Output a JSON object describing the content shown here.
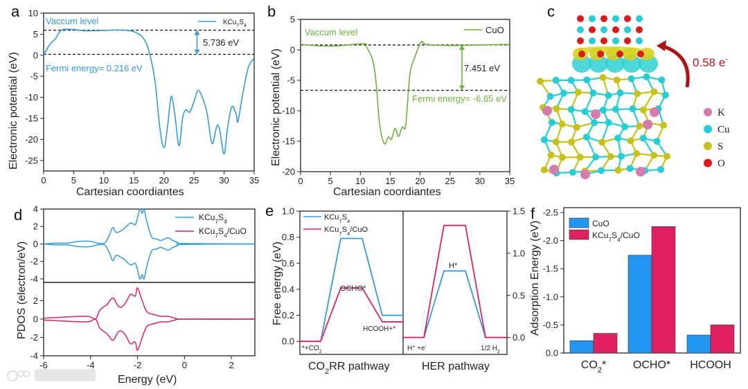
{
  "panel_labels": {
    "a": "a",
    "b": "b",
    "c": "c",
    "d": "d",
    "e": "e",
    "f": "f"
  },
  "colors": {
    "kcu7s4_blue": "#2e9be8",
    "cuo_green": "#6bb33a",
    "composite_pink": "#e0205f",
    "bar_blue": "#2196f0",
    "charge_red": "#c0141e"
  },
  "watermark": "大数跨境",
  "chart_data": [
    {
      "id": "a",
      "type": "line",
      "xlabel": "Cartesian coordiantes",
      "ylabel": "Electronic potential (eV)",
      "xlim": [
        0,
        35
      ],
      "ylim": [
        -27.5,
        10
      ],
      "xticks": [
        "0",
        "5",
        "10",
        "15",
        "20",
        "25",
        "30",
        "35"
      ],
      "yticks": [
        "10",
        "5",
        "0",
        "-5",
        "-10",
        "-15",
        "-20",
        "-25"
      ],
      "legend": "KCu7S4",
      "legend_position": "top-right",
      "annotations": {
        "vacuum": "Vaccum level",
        "fermi": "Fermi energy= 0.216 eV",
        "gap": "5.736 eV"
      },
      "vacuum_level": 5.95,
      "fermi_level": 0.216,
      "series": [
        {
          "name": "KCu7S4",
          "points": [
            [
              0,
              0
            ],
            [
              1,
              2.5
            ],
            [
              2,
              4
            ],
            [
              3,
              6
            ],
            [
              5,
              6.1
            ],
            [
              7,
              5.8
            ],
            [
              10,
              5.9
            ],
            [
              13,
              6
            ],
            [
              15,
              5.6
            ],
            [
              16.5,
              4.2
            ],
            [
              17.5,
              1
            ],
            [
              18.5,
              -6
            ],
            [
              19.3,
              -17
            ],
            [
              20,
              -22
            ],
            [
              20.6,
              -17
            ],
            [
              21.2,
              -9.8
            ],
            [
              21.8,
              -14
            ],
            [
              22.5,
              -21.5
            ],
            [
              23.1,
              -15
            ],
            [
              23.6,
              -13
            ],
            [
              24.3,
              -13.5
            ],
            [
              25,
              -11
            ],
            [
              25.7,
              -8.3
            ],
            [
              26.5,
              -10.5
            ],
            [
              27.2,
              -14
            ],
            [
              28,
              -21
            ],
            [
              28.8,
              -16.8
            ],
            [
              29.3,
              -18
            ],
            [
              30,
              -23.5
            ],
            [
              30.6,
              -17
            ],
            [
              31.3,
              -12.2
            ],
            [
              32,
              -14
            ],
            [
              32.3,
              -15.8
            ],
            [
              33,
              -10
            ],
            [
              34,
              -3
            ],
            [
              35,
              -0.7
            ]
          ]
        }
      ]
    },
    {
      "id": "b",
      "type": "line",
      "xlabel": "Cartesian coordiantes",
      "ylabel": "Electronic potential (eV)",
      "xlim": [
        0,
        35
      ],
      "ylim": [
        -20,
        5
      ],
      "xticks": [
        "0",
        "5",
        "10",
        "15",
        "20",
        "25",
        "30",
        "35"
      ],
      "yticks": [
        "5",
        "0",
        "-5",
        "-10",
        "-15",
        "-20"
      ],
      "legend": "CuO",
      "legend_position": "top-right",
      "annotations": {
        "vacuum": "Vaccum level",
        "fermi": "Fermi energy= -6.65 eV",
        "gap": "7.451 eV"
      },
      "vacuum_level": 0.8,
      "fermi_level": -6.65,
      "series": [
        {
          "name": "CuO",
          "points": [
            [
              0,
              0.9
            ],
            [
              5,
              0.6
            ],
            [
              10.5,
              1
            ],
            [
              11,
              0.5
            ],
            [
              12,
              -1.5
            ],
            [
              12.6,
              -5
            ],
            [
              13.2,
              -12
            ],
            [
              14,
              -15.4
            ],
            [
              14.7,
              -14.3
            ],
            [
              15.2,
              -14.7
            ],
            [
              15.8,
              -12.9
            ],
            [
              16.4,
              -14.2
            ],
            [
              17,
              -12.7
            ],
            [
              17.5,
              -12.9
            ],
            [
              17.8,
              -10
            ],
            [
              18.3,
              -4
            ],
            [
              19,
              -1.5
            ],
            [
              20.2,
              1.3
            ],
            [
              21,
              0.9
            ],
            [
              25,
              0.7
            ],
            [
              30,
              0.8
            ],
            [
              35,
              0.9
            ]
          ]
        }
      ]
    },
    {
      "id": "d",
      "type": "line",
      "xlabel": "Energy (eV)",
      "ylabel": "PDOS (electron/eV)",
      "xlim": [
        -6,
        3
      ],
      "xticks": [
        "-6",
        "-4",
        "-2",
        "0",
        "2"
      ],
      "top_yticks": [
        "4",
        "2",
        "0",
        "-2",
        "-4"
      ],
      "top_ylim": [
        -4.4,
        4
      ],
      "bottom_yticks": [
        "2",
        "0",
        "-2",
        "-4"
      ],
      "bottom_ylim": [
        -4,
        4
      ],
      "legend": [
        "KCu7S4",
        "KCu7S4/CuO"
      ],
      "legend_position": "top-right",
      "series": [
        {
          "name": "KCu7S4",
          "mirrored": true,
          "points": [
            [
              -6,
              0
            ],
            [
              -5.5,
              0.1
            ],
            [
              -5,
              0.1
            ],
            [
              -4.5,
              0.3
            ],
            [
              -4,
              0.3
            ],
            [
              -3.7,
              0.1
            ],
            [
              -3.4,
              0.1
            ],
            [
              -3.2,
              1
            ],
            [
              -3.05,
              1.9
            ],
            [
              -2.9,
              1.3
            ],
            [
              -2.6,
              1.7
            ],
            [
              -2.3,
              2.4
            ],
            [
              -2.1,
              2.2
            ],
            [
              -2,
              3
            ],
            [
              -1.9,
              4
            ],
            [
              -1.8,
              3.5
            ],
            [
              -1.72,
              4
            ],
            [
              -1.6,
              2.5
            ],
            [
              -1.4,
              0.8
            ],
            [
              -1.2,
              0.6
            ],
            [
              -1,
              0.4
            ],
            [
              -0.7,
              0.7
            ],
            [
              -0.5,
              0.4
            ],
            [
              -0.3,
              0.2
            ],
            [
              0,
              0.05
            ],
            [
              3,
              0
            ]
          ]
        },
        {
          "name": "KCu7S4/CuO",
          "mirrored": true,
          "points": [
            [
              -6,
              0.1
            ],
            [
              -4.2,
              0.3
            ],
            [
              -3.8,
              0
            ],
            [
              -3.6,
              1
            ],
            [
              -3.3,
              1.6
            ],
            [
              -3.05,
              2.3
            ],
            [
              -2.85,
              1.5
            ],
            [
              -2.7,
              1.3
            ],
            [
              -2.5,
              1.8
            ],
            [
              -2.3,
              2.7
            ],
            [
              -2.1,
              2.5
            ],
            [
              -2,
              3.4
            ],
            [
              -1.8,
              2
            ],
            [
              -1.6,
              0.8
            ],
            [
              -1.3,
              0.5
            ],
            [
              -1,
              0.3
            ],
            [
              -0.7,
              0.3
            ],
            [
              -0.4,
              0.1
            ],
            [
              0,
              0
            ],
            [
              3,
              0
            ]
          ]
        }
      ]
    },
    {
      "id": "e",
      "type": "line",
      "ylabel": "Free energy (eV)",
      "left_ylim": [
        -0.1,
        1.0
      ],
      "left_yticks": [
        "0.0",
        "0.2",
        "0.4",
        "0.6",
        "0.8",
        "1.0"
      ],
      "right_ylim": [
        -0.2,
        1.5
      ],
      "right_yticks": [
        "0.0",
        "0.5",
        "1.0",
        "1.5"
      ],
      "pathways": [
        "CO2RR pathway",
        "HER pathway"
      ],
      "legend": [
        "KCu7S4",
        "KCu7S4/CuO"
      ],
      "legend_position": "top-left",
      "states_co2rr": [
        "*+CO2",
        "OCHO*",
        "HCOOH+*"
      ],
      "states_her": [
        "H+ +e-",
        "H*",
        "1/2 H2"
      ],
      "series": [
        {
          "name": "KCu7S4",
          "co2rr": [
            0,
            0.79,
            0.2
          ],
          "her": [
            0,
            0.79,
            0
          ]
        },
        {
          "name": "KCu7S4/CuO",
          "co2rr": [
            0,
            0.41,
            0.15
          ],
          "her": [
            0,
            1.33,
            0
          ]
        }
      ]
    },
    {
      "id": "f",
      "type": "bar",
      "ylabel": "Adsorption Energy (eV)",
      "ylim": [
        0,
        -2.5
      ],
      "yticks": [
        "-2.5",
        "-2.0",
        "-1.5",
        "-1.0",
        "-0.5",
        "0.0"
      ],
      "categories": [
        "CO2*",
        "OCHO*",
        "HCOOH"
      ],
      "legend_position": "top-left",
      "series": [
        {
          "name": "CuO",
          "values": [
            -0.22,
            -1.74,
            -0.32
          ]
        },
        {
          "name": "KCu7S4/CuO",
          "values": [
            -0.35,
            -2.25,
            -0.5
          ]
        }
      ]
    }
  ],
  "structure_c": {
    "charge_transfer": "0.58 e-",
    "legend": [
      {
        "element": "K",
        "color": "#d77aae"
      },
      {
        "element": "Cu",
        "color": "#22cfd6"
      },
      {
        "element": "S",
        "color": "#c9c214"
      },
      {
        "element": "O",
        "color": "#e01818"
      }
    ]
  }
}
